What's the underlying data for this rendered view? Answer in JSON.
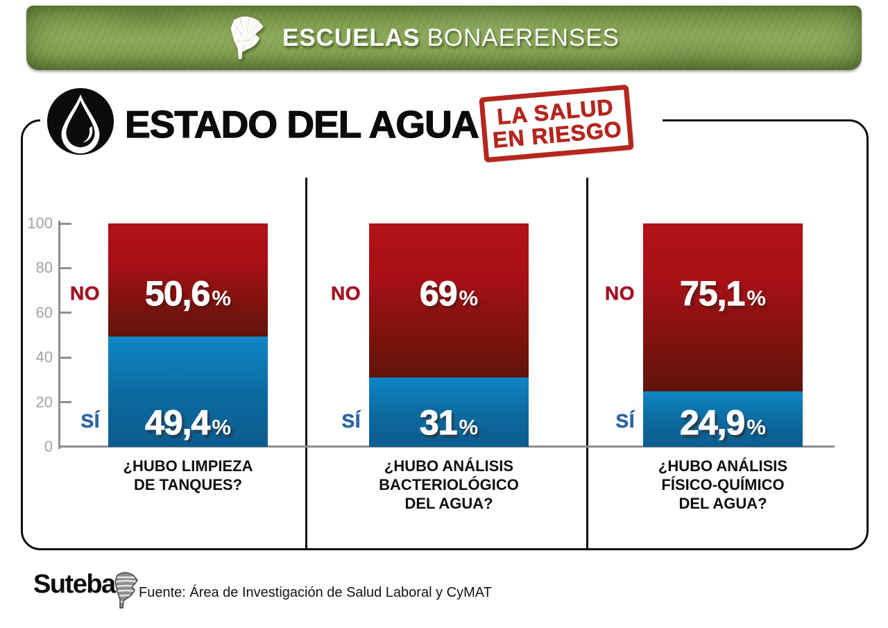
{
  "header": {
    "brand_bold": "ESCUELAS",
    "brand_light": "BONAERENSES",
    "icon": "buenos-aires-province-icon"
  },
  "title": {
    "text": "ESTADO DEL AGUA",
    "icon": "water-drop-icon",
    "stamp": {
      "line1": "LA SALUD",
      "line2": "EN RIESGO",
      "color": "#b3271f"
    }
  },
  "colors": {
    "header_green": "#8cab58",
    "no_red_top": "#b11218",
    "no_red_bottom": "#601409",
    "si_blue_top": "#0e86c6",
    "si_blue_bottom": "#0c5c8e",
    "no_label_red": "#a21425",
    "si_label_blue": "#2d67a3",
    "axis_gray": "#8e8e8e",
    "frame_black": "#0e0e0e"
  },
  "chart_data": {
    "type": "bar",
    "stacked": true,
    "title": "ESTADO DEL AGUA",
    "categories": [
      "¿HUBO LIMPIEZA DE TANQUES?",
      "¿HUBO ANÁLISIS BACTERIOLÓGICO DEL AGUA?",
      "¿HUBO ANÁLISIS FÍSICO-QUÍMICO DEL AGUA?"
    ],
    "series": [
      {
        "name": "NO",
        "color": "#b11218",
        "values": [
          50.6,
          69,
          75.1
        ]
      },
      {
        "name": "SÍ",
        "color": "#0e86c6",
        "values": [
          49.4,
          31,
          24.9
        ]
      }
    ],
    "ylim": [
      0,
      100
    ],
    "yticks": [
      0,
      20,
      40,
      60,
      80,
      100
    ],
    "grid": false,
    "legend_position": "left-of-bars",
    "value_label_format": "decimal-comma percent"
  },
  "axis": {
    "tick_labels": [
      "100",
      "80",
      "60",
      "40",
      "20",
      "0"
    ]
  },
  "percent_sign": "%",
  "panels": [
    {
      "no_label": "NO",
      "no_value": "50,6",
      "si_label": "SÍ",
      "si_value": "49,4",
      "question_lines": [
        "¿HUBO LIMPIEZA",
        "DE TANQUES?",
        ""
      ]
    },
    {
      "no_label": "NO",
      "no_value": "69",
      "si_label": "SÍ",
      "si_value": "31",
      "question_lines": [
        "¿HUBO ANÁLISIS",
        "BACTERIOLÓGICO",
        "DEL AGUA?"
      ]
    },
    {
      "no_label": "NO",
      "no_value": "75,1",
      "si_label": "SÍ",
      "si_value": "24,9",
      "question_lines": [
        "¿HUBO ANÁLISIS",
        "FÍSICO-QUÍMICO",
        "DEL AGUA?"
      ]
    }
  ],
  "footer": {
    "logo_text": "Suteba",
    "logo_icon": "suteba-province-icon",
    "source": "Fuente: Área de Investigación de Salud Laboral y CyMAT"
  }
}
